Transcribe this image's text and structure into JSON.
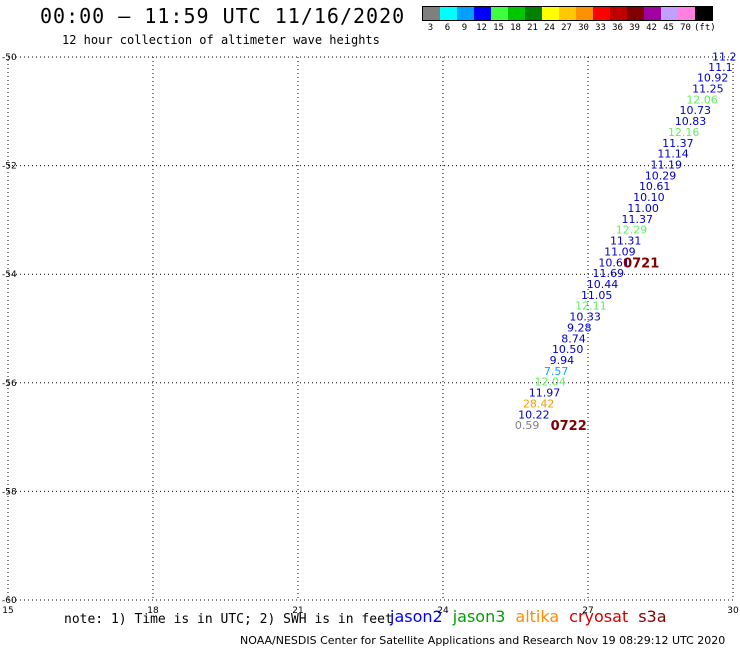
{
  "header": {
    "title": "00:00 – 11:59 UTC 11/16/2020",
    "subtitle": "12 hour collection of altimeter wave heights"
  },
  "legend": {
    "unit": "(ft)",
    "bins": [
      {
        "label": "3",
        "color": "#7f7f7f"
      },
      {
        "label": "6",
        "color": "#00ffff"
      },
      {
        "label": "9",
        "color": "#00a0ff"
      },
      {
        "label": "12",
        "color": "#0000ff"
      },
      {
        "label": "15",
        "color": "#40ff40"
      },
      {
        "label": "18",
        "color": "#00c800"
      },
      {
        "label": "21",
        "color": "#008000"
      },
      {
        "label": "24",
        "color": "#ffff00"
      },
      {
        "label": "27",
        "color": "#ffc800"
      },
      {
        "label": "30",
        "color": "#ff9000"
      },
      {
        "label": "33",
        "color": "#ff0000"
      },
      {
        "label": "36",
        "color": "#c00000"
      },
      {
        "label": "39",
        "color": "#800000"
      },
      {
        "label": "42",
        "color": "#a000a0"
      },
      {
        "label": "45",
        "color": "#c0a0ff"
      },
      {
        "label": "70",
        "color": "#ff80e0"
      },
      {
        "label": "",
        "color": "#000000"
      }
    ]
  },
  "chart_data": {
    "type": "scatter",
    "title": "00:00 – 11:59 UTC 11/16/2020",
    "subtitle": "12 hour collection of altimeter wave heights",
    "xlabel": "",
    "ylabel": "",
    "xlim": [
      15,
      30
    ],
    "ylim": [
      -60,
      -50
    ],
    "x_ticks": [
      15,
      18,
      21,
      24,
      27,
      30
    ],
    "y_ticks": [
      -50,
      -52,
      -54,
      -56,
      -58,
      -60
    ],
    "x_tick_labels": [
      "15",
      "18",
      "21",
      "24",
      "27",
      "30"
    ],
    "y_tick_labels": [
      "-50",
      "-52",
      "-54",
      "-56",
      "-58",
      "-60"
    ],
    "grid": true,
    "points": [
      {
        "x": 29.82,
        "y": -49.99,
        "label": "11.2",
        "color": "#0000c8"
      },
      {
        "x": 29.74,
        "y": -50.18,
        "label": "11.1",
        "color": "#0000c8"
      },
      {
        "x": 29.58,
        "y": -50.38,
        "label": "10.92",
        "color": "#0000c8"
      },
      {
        "x": 29.48,
        "y": -50.58,
        "label": "11.25",
        "color": "#0000c8"
      },
      {
        "x": 29.36,
        "y": -50.78,
        "label": "12.06",
        "color": "#60f060"
      },
      {
        "x": 29.22,
        "y": -50.98,
        "label": "10.73",
        "color": "#0000c8"
      },
      {
        "x": 29.12,
        "y": -51.18,
        "label": "10.83",
        "color": "#0000c8"
      },
      {
        "x": 28.98,
        "y": -51.38,
        "label": "12.16",
        "color": "#60f060"
      },
      {
        "x": 28.86,
        "y": -51.58,
        "label": "11.37",
        "color": "#0000c8"
      },
      {
        "x": 28.76,
        "y": -51.78,
        "label": "11.14",
        "color": "#0000c8"
      },
      {
        "x": 28.62,
        "y": -51.98,
        "label": "11.19",
        "color": "#0000c8"
      },
      {
        "x": 28.5,
        "y": -52.18,
        "label": "10.29",
        "color": "#0000c8"
      },
      {
        "x": 28.38,
        "y": -52.38,
        "label": "10.61",
        "color": "#0000c8"
      },
      {
        "x": 28.26,
        "y": -52.58,
        "label": "10.10",
        "color": "#0000c8"
      },
      {
        "x": 28.14,
        "y": -52.78,
        "label": "11.00",
        "color": "#0000c8"
      },
      {
        "x": 28.02,
        "y": -52.98,
        "label": "11.37",
        "color": "#0000c8"
      },
      {
        "x": 27.9,
        "y": -53.18,
        "label": "12.29",
        "color": "#60f060"
      },
      {
        "x": 27.78,
        "y": -53.38,
        "label": "11.31",
        "color": "#0000c8"
      },
      {
        "x": 27.66,
        "y": -53.58,
        "label": "11.09",
        "color": "#0000c8"
      },
      {
        "x": 27.54,
        "y": -53.78,
        "label": "10.61",
        "color": "#0000c8"
      },
      {
        "x": 27.42,
        "y": -53.98,
        "label": "11.69",
        "color": "#0000c8"
      },
      {
        "x": 27.3,
        "y": -54.18,
        "label": "10.44",
        "color": "#0000c8"
      },
      {
        "x": 27.18,
        "y": -54.38,
        "label": "11.05",
        "color": "#0000c8"
      },
      {
        "x": 27.06,
        "y": -54.58,
        "label": "12.11",
        "color": "#60f060"
      },
      {
        "x": 26.94,
        "y": -54.78,
        "label": "10.33",
        "color": "#0000c8"
      },
      {
        "x": 26.82,
        "y": -54.98,
        "label": "9.28",
        "color": "#0000c8"
      },
      {
        "x": 26.7,
        "y": -55.18,
        "label": "8.74",
        "color": "#0000c8"
      },
      {
        "x": 26.58,
        "y": -55.38,
        "label": "10.50",
        "color": "#0000c8"
      },
      {
        "x": 26.46,
        "y": -55.58,
        "label": "9.94",
        "color": "#0000c8"
      },
      {
        "x": 26.34,
        "y": -55.78,
        "label": "7.57",
        "color": "#10a0ff"
      },
      {
        "x": 26.22,
        "y": -55.98,
        "label": "12.04",
        "color": "#60f060"
      },
      {
        "x": 26.1,
        "y": -56.18,
        "label": "11.97",
        "color": "#0000c8"
      },
      {
        "x": 25.98,
        "y": -56.38,
        "label": "28.42",
        "color": "#f0a000"
      },
      {
        "x": 25.88,
        "y": -56.58,
        "label": "10.22",
        "color": "#0000c8"
      },
      {
        "x": 25.74,
        "y": -56.78,
        "label": "0.59",
        "color": "#808080"
      }
    ],
    "annotations": [
      {
        "x": 28.1,
        "y": -53.78,
        "text": "0721",
        "color": "#800000"
      },
      {
        "x": 26.6,
        "y": -56.78,
        "text": "0722",
        "color": "#800000"
      }
    ]
  },
  "footer": {
    "note": "note: 1) Time is in UTC; 2) SWH is in feet",
    "satellites": [
      {
        "name": "jason2",
        "color": "#0000ff"
      },
      {
        "name": "jason3",
        "color": "#00a000"
      },
      {
        "name": "altika",
        "color": "#ff8c00"
      },
      {
        "name": "cryosat",
        "color": "#d00000"
      },
      {
        "name": "s3a",
        "color": "#800000"
      }
    ],
    "credit": "NOAA/NESDIS Center for Satellite Applications and Research   Nov 19 08:29:12 UTC 2020"
  }
}
